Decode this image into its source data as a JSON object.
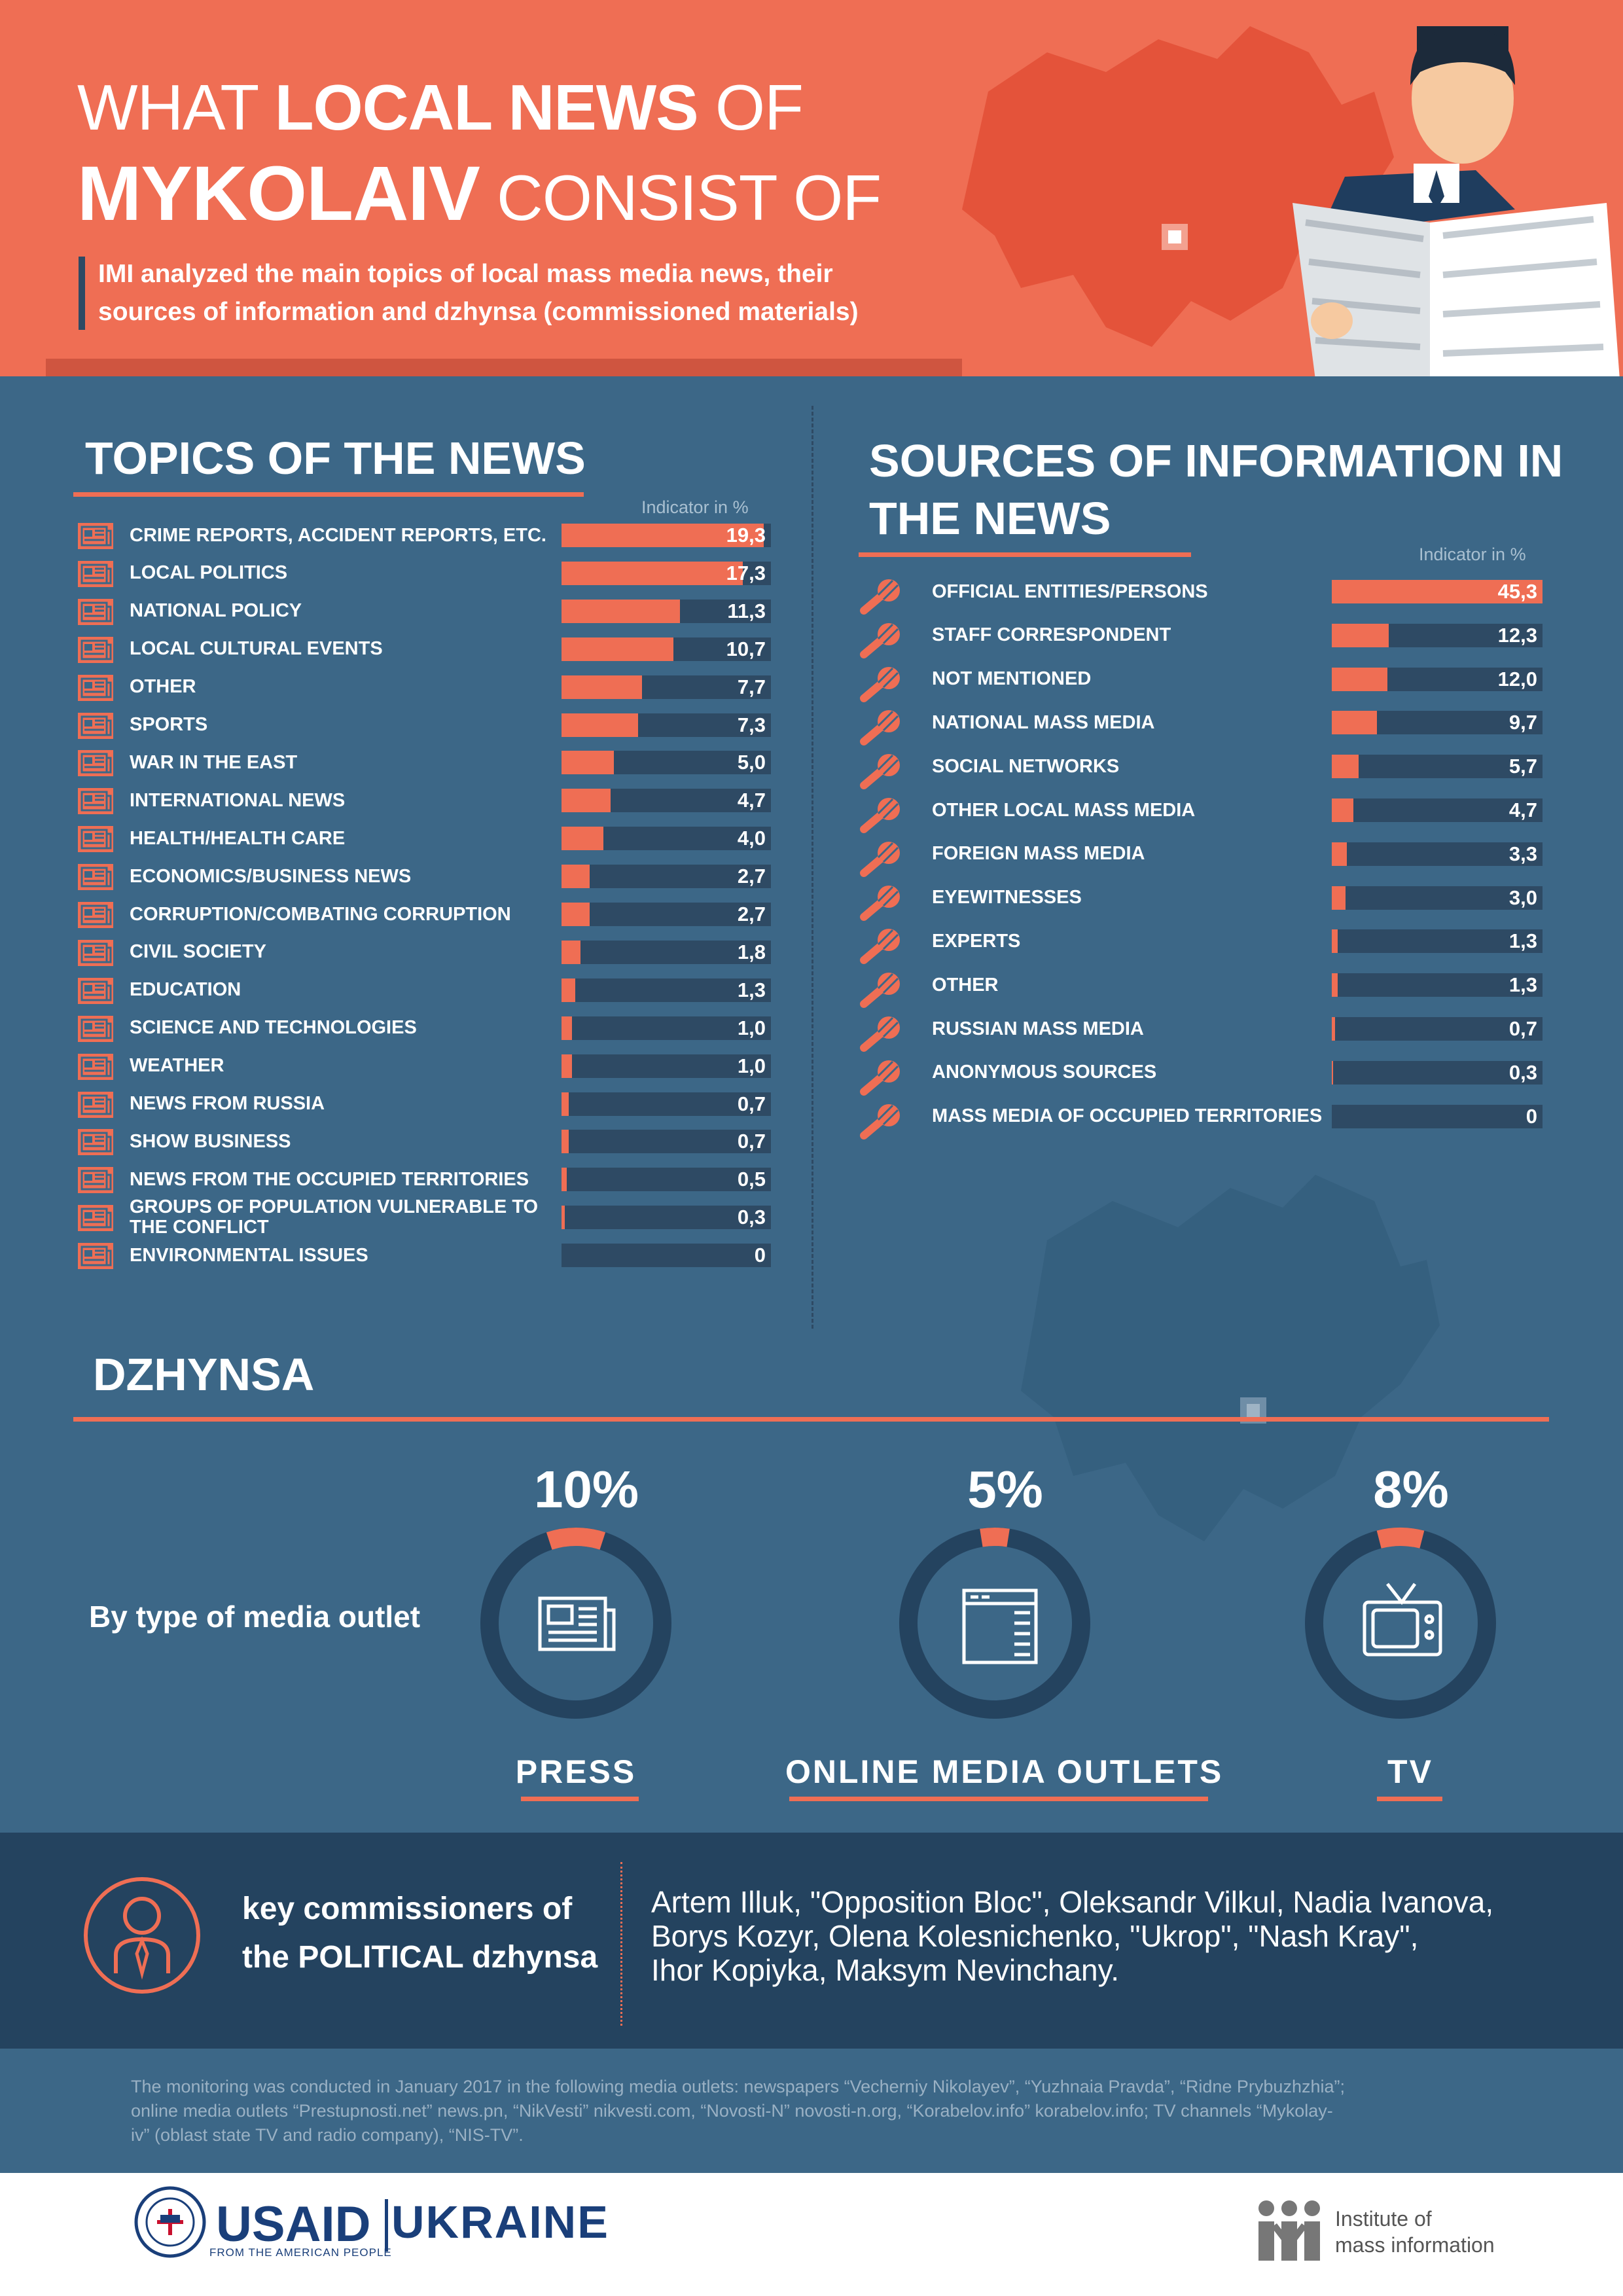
{
  "header": {
    "title_pre": "WHAT ",
    "title_bold": "LOCAL NEWS",
    "title_post": " OF",
    "title2_bold": "MYKOLAIV",
    "title2_post": " CONSIST OF",
    "subtitle_line1": "IMI analyzed the main topics of local mass media news, their",
    "subtitle_line2": "sources of information and dzhynsa (commissioned materials)"
  },
  "colors": {
    "accent": "#ef6e54",
    "background": "#3c6787",
    "dark": "#2e4a64",
    "darker": "#24435f"
  },
  "icons": {
    "topic_row": "newspaper-icon",
    "source_row": "microphone-icon"
  },
  "chart_data": [
    {
      "type": "bar",
      "title": "TOPICS OF THE NEWS",
      "ylabel": "Indicator in %",
      "ylim": [
        0,
        20
      ],
      "categories": [
        "CRIME REPORTS, ACCIDENT REPORTS, ETC.",
        "LOCAL POLITICS",
        "NATIONAL POLICY",
        "LOCAL CULTURAL EVENTS",
        "OTHER",
        "SPORTS",
        "WAR IN THE EAST",
        "INTERNATIONAL NEWS",
        "HEALTH/HEALTH CARE",
        "ECONOMICS/BUSINESS NEWS",
        "CORRUPTION/COMBATING CORRUPTION",
        "CIVIL SOCIETY",
        "EDUCATION",
        "SCIENCE AND TECHNOLOGIES",
        "WEATHER",
        "NEWS FROM RUSSIA",
        "SHOW BUSINESS",
        "NEWS FROM THE OCCUPIED TERRITORIES",
        "GROUPS OF POPULATION VULNERABLE TO THE CONFLICT",
        "ENVIRONMENTAL ISSUES"
      ],
      "values": [
        19.3,
        17.3,
        11.3,
        10.7,
        7.7,
        7.3,
        5.0,
        4.7,
        4.0,
        2.7,
        2.7,
        1.8,
        1.3,
        1.0,
        1.0,
        0.7,
        0.7,
        0.5,
        0.3,
        0
      ],
      "labels": [
        "19,3",
        "17,3",
        "11,3",
        "10,7",
        "7,7",
        "7,3",
        "5,0",
        "4,7",
        "4,0",
        "2,7",
        "2,7",
        "1,8",
        "1,3",
        "1,0",
        "1,0",
        "0,7",
        "0,7",
        "0,5",
        "0,3",
        "0"
      ]
    },
    {
      "type": "bar",
      "title": "SOURCES OF INFORMATION IN THE NEWS",
      "ylabel": "Indicator in %",
      "ylim": [
        0,
        45.3
      ],
      "categories": [
        "OFFICIAL ENTITIES/PERSONS",
        "STAFF CORRESPONDENT",
        "NOT MENTIONED",
        "NATIONAL MASS MEDIA",
        "SOCIAL NETWORKS",
        "OTHER LOCAL MASS MEDIA",
        "FOREIGN MASS MEDIA",
        "EYEWITNESSES",
        "EXPERTS",
        "OTHER",
        "RUSSIAN MASS MEDIA",
        "ANONYMOUS SOURCES",
        "MASS MEDIA OF OCCUPIED TERRITORIES"
      ],
      "values": [
        45.3,
        12.3,
        12.0,
        9.7,
        5.7,
        4.7,
        3.3,
        3.0,
        1.3,
        1.3,
        0.7,
        0.3,
        0
      ],
      "labels": [
        "45,3",
        "12,3",
        "12,0",
        "9,7",
        "5,7",
        "4,7",
        "3,3",
        "3,0",
        "1,3",
        "1,3",
        "0,7",
        "0,3",
        "0"
      ]
    },
    {
      "type": "pie",
      "title": "DZHYNSA",
      "subtitle": "By type of media outlet",
      "items": [
        {
          "name": "PRESS",
          "value": 10,
          "label": "10%",
          "icon": "newspaper-icon"
        },
        {
          "name": "ONLINE MEDIA OUTLETS",
          "value": 5,
          "label": "5%",
          "icon": "browser-window-icon"
        },
        {
          "name": "TV",
          "value": 8,
          "label": "8%",
          "icon": "tv-icon"
        }
      ]
    }
  ],
  "key": {
    "label_line1": "key commissioners of",
    "label_line2": "the POLITICAL dzhynsa",
    "icon": "person-with-tie-icon",
    "list_line1": "Artem Illuk, \"Opposition Bloc\", Oleksandr Vilkul, Nadia Ivanova,",
    "list_line2": "Borys Kozyr, Olena Kolesnichenko, \"Ukrop\", \"Nash Kray\",",
    "list_line3": "Ihor Kopiyka, Maksym Nevinchany."
  },
  "footer": {
    "line1": "The monitoring was conducted in January 2017 in the following media outlets: newspapers “Vecherniy Nikolayev”, “Yuzhnaia Pravda”, “Ridne Prybuzhzhia”;",
    "line2": "online media outlets “Prestupnosti.net” news.pn, “NikVesti” nikvesti.com, “Novosti-N” novosti-n.org, “Korabelov.info” korabelov.info; TV channels “Mykolay-",
    "line3": "iv” (oblast state TV and radio company), “NIS-TV”."
  },
  "logos": {
    "usaid": "USAID",
    "usaid_tagline": "FROM THE AMERICAN PEOPLE",
    "ukraine": "UKRAINE",
    "imi_line1": "Institute of",
    "imi_line2": "mass information"
  }
}
